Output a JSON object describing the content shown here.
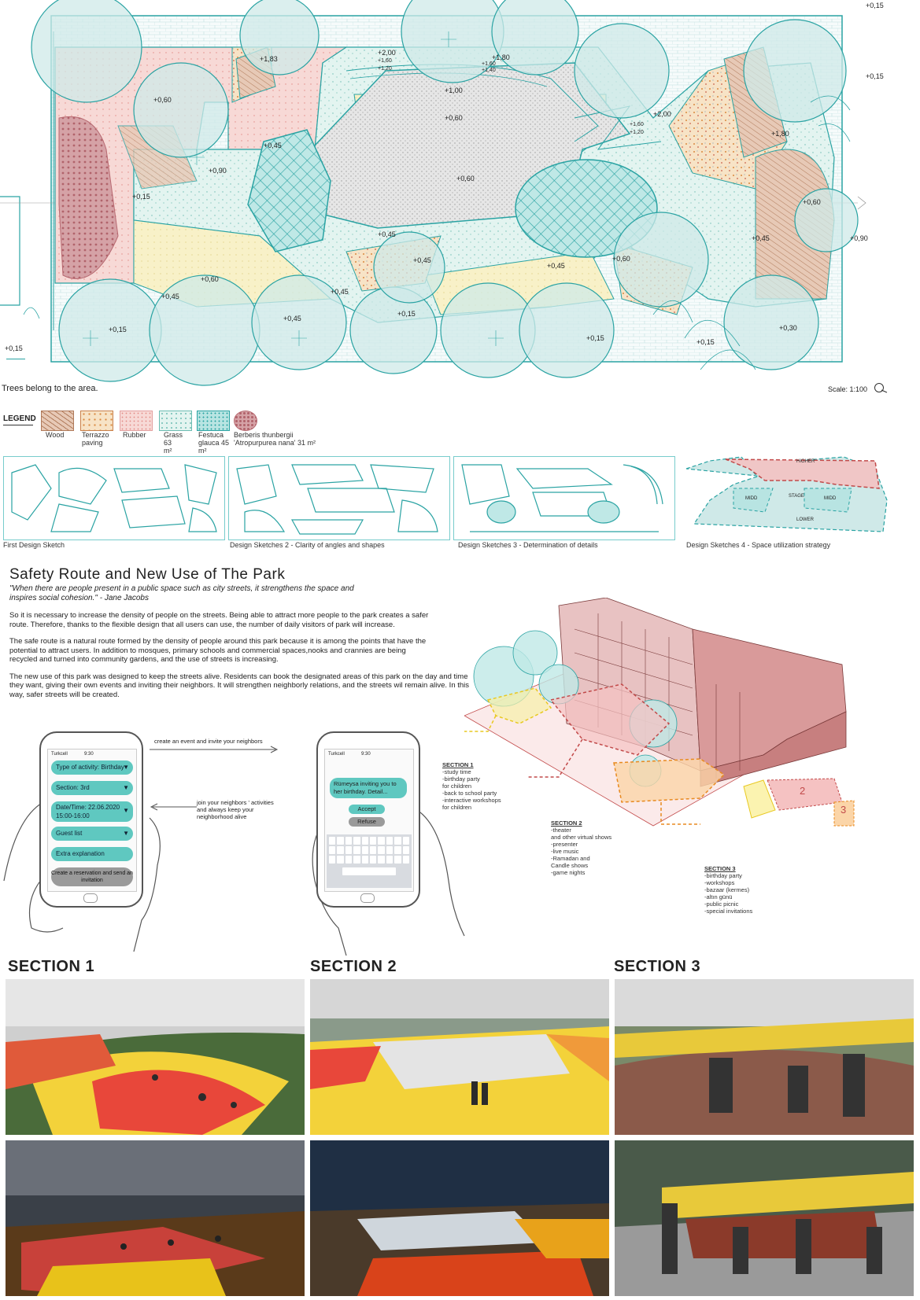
{
  "plan": {
    "caption_trees": "Trees belong to the area.",
    "scale": "Scale: 1:100",
    "corner_level": "+0,15",
    "levels": [
      {
        "t": "+1,83"
      },
      {
        "t": "+2,00"
      },
      {
        "t": "+1,60"
      },
      {
        "t": "+1,20"
      },
      {
        "t": "+1,80"
      },
      {
        "t": "+1,60"
      },
      {
        "t": "+1,40"
      },
      {
        "t": "+0,15"
      },
      {
        "t": "+1,00"
      },
      {
        "t": "+0,60"
      },
      {
        "t": "+0,60"
      },
      {
        "t": "+2,00"
      },
      {
        "t": "+1,60"
      },
      {
        "t": "+1,20"
      },
      {
        "t": "+1,80"
      },
      {
        "t": "+0,45"
      },
      {
        "t": "+0,90"
      },
      {
        "t": "+0,15"
      },
      {
        "t": "+0,60"
      },
      {
        "t": "+0,60"
      },
      {
        "t": "+0,60"
      },
      {
        "t": "+0,45"
      },
      {
        "t": "+0,45"
      },
      {
        "t": "+0,90"
      },
      {
        "t": "+0,60"
      },
      {
        "t": "+0,45"
      },
      {
        "t": "+0,45"
      },
      {
        "t": "+0,45"
      },
      {
        "t": "+0,45"
      },
      {
        "t": "+0,15"
      },
      {
        "t": "+0,45"
      },
      {
        "t": "+0,15"
      },
      {
        "t": "+0,15"
      },
      {
        "t": "+0,30"
      },
      {
        "t": "+0,15"
      },
      {
        "t": "+0,15"
      }
    ]
  },
  "legend": {
    "title": "LEGEND",
    "items": [
      {
        "label": "Wood",
        "sub": "",
        "color": "#d9a78f"
      },
      {
        "label": "Terrazzo",
        "sub": "paving",
        "color": "#f2c48c"
      },
      {
        "label": "Rubber",
        "sub": "",
        "color": "#f2c6c6"
      },
      {
        "label": "Grass",
        "sub": "63 m²",
        "color": "#cfeeea"
      },
      {
        "label": "Festuca",
        "sub": "glauca 45 m²",
        "color": "#b8e4e2"
      },
      {
        "label": "Berberis thunbergii",
        "sub": "'Atropurpurea nana' 31 m²",
        "color": "#b86a72"
      }
    ]
  },
  "sketches": [
    {
      "caption": "First Design Sketch"
    },
    {
      "caption": "Design Sketches 2 - Clarity of angles and shapes"
    },
    {
      "caption": "Design Sketches 3 - Determination of details"
    },
    {
      "caption": "Design Sketches 4 - Space utilization strategy"
    }
  ],
  "sketch4_labels": {
    "higher": "HIGHER",
    "stage": "STAGE",
    "lower": "LOWER",
    "mid_left": "MIDD",
    "mid_right": "MIDD"
  },
  "text_block": {
    "title": "Safety Route and New Use of The Park",
    "quote": "\"When there are people present in a public space such as city streets, it strengthens the space and inspires social cohesion.\" - Jane Jacobs",
    "p1": "So it is necessary to increase the density of people on the streets. Being able to attract more people to the park creates a safer route. Therefore, thanks to the flexible design that all users can use, the number of daily visitors of park will increase.",
    "p2": "The safe route is a natural route formed by the density of people around this park because it is among the points that have the potential to attract users. In addition to mosques, primary schools and commercial spaces,nooks and crannies are being recycled and turned into community gardens, and the use of streets is increasing.",
    "p3": "The new use of this park was designed to keep the streets alive. Residents can book the designated areas of this park on the day and time they want, giving their own events and inviting their neighbors. It will strengthen neighborly relations, and the streets wil remain alive. In this way, safer streets will be created."
  },
  "phone_left": {
    "carrier": "Turkcell",
    "time": "9:30",
    "fields": [
      "Type of activity: Birthday",
      "Section: 3rd",
      "Date/Time: 22.06.2020 15:00-16:00",
      "Guest list",
      "Extra explanation"
    ],
    "cta": "Create a reservation and send an invitation"
  },
  "phone_right": {
    "carrier": "Turkcell",
    "time": "9:30",
    "message": "Rümeysa inviting you to her birthday. Detail...",
    "accept": "Accept",
    "refuse": "Refuse"
  },
  "arrows": {
    "top": "create an event and invite your neighbors",
    "bottom": "join your neighbors ' activities and always keep your neighborhood alive"
  },
  "iso_sections": [
    {
      "title": "SECTION 1",
      "items": [
        "-study time",
        "-birthday party",
        "for children",
        "-back to school party",
        "-interactive workshops",
        "for children"
      ]
    },
    {
      "title": "SECTION 2",
      "items": [
        "-theater",
        "and other virtual shows",
        "-presenter",
        "-live music",
        "-Ramadan and",
        "Candle shows",
        "-game nights"
      ]
    },
    {
      "title": "SECTION 3",
      "items": [
        "-birthday party",
        "-workshops",
        "-bazaar (kermes)",
        "-altın günü",
        "-public picnic",
        "-special invitations"
      ]
    }
  ],
  "mini_map": {
    "n2": "2",
    "n3": "3"
  },
  "renders": {
    "titles": [
      "SECTION 1",
      "SECTION 2",
      "SECTION 3"
    ]
  }
}
